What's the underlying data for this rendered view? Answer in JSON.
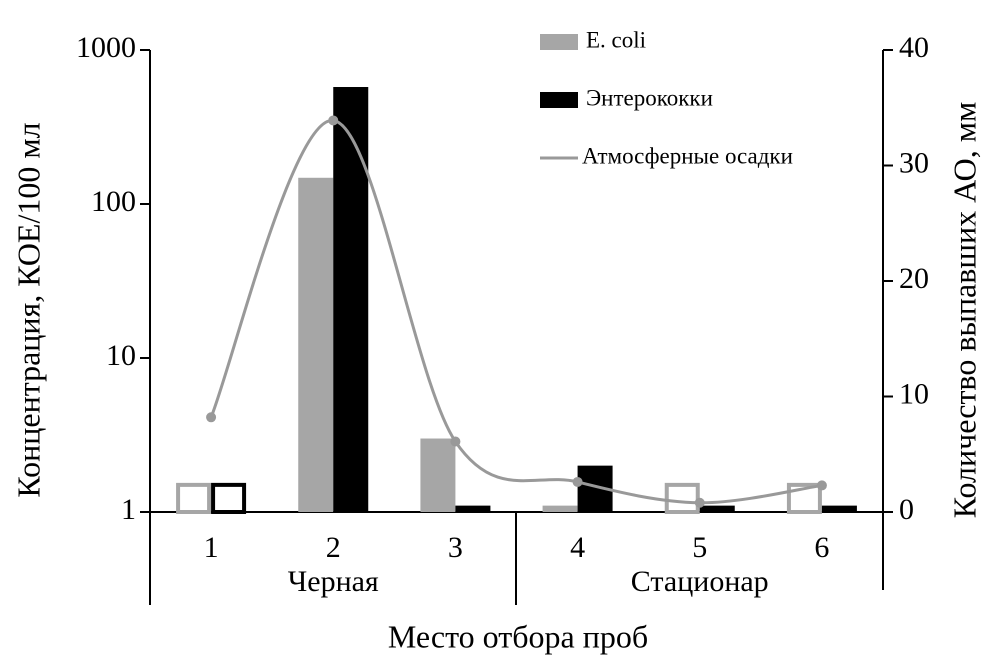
{
  "chart_data": {
    "type": "bar",
    "x_label": "Место отбора проб",
    "y_label": "Концентрация, КОЕ/100 мл",
    "y2_label": "Количество выпавших АО, мм",
    "categories": [
      "1",
      "2",
      "3",
      "4",
      "5",
      "6"
    ],
    "groups": [
      "Черная",
      "Стационар"
    ],
    "yscale": "log",
    "ylim": [
      1,
      1000
    ],
    "yticks": [
      1,
      10,
      100,
      1000
    ],
    "y2lim": [
      0,
      40
    ],
    "y2ticks": [
      0,
      10,
      20,
      30,
      40
    ],
    "legend": "upper right",
    "series": [
      {
        "name": "E. coli",
        "color": "#a6a6a6",
        "values": [
          1.5,
          148,
          3,
          1.1,
          1.5,
          1.5
        ],
        "hollow": [
          true,
          false,
          false,
          false,
          true,
          true
        ]
      },
      {
        "name": "Энтерококки",
        "color": "#000000",
        "values": [
          1.5,
          575,
          1.1,
          2,
          1.1,
          1.1
        ],
        "hollow": [
          true,
          false,
          false,
          false,
          false,
          false
        ]
      },
      {
        "name": "Атмосферные осадки",
        "type": "line",
        "axis": "y2",
        "color": "#999999",
        "values": [
          8.2,
          33.9,
          6.1,
          2.6,
          0.8,
          2.3
        ]
      }
    ]
  }
}
